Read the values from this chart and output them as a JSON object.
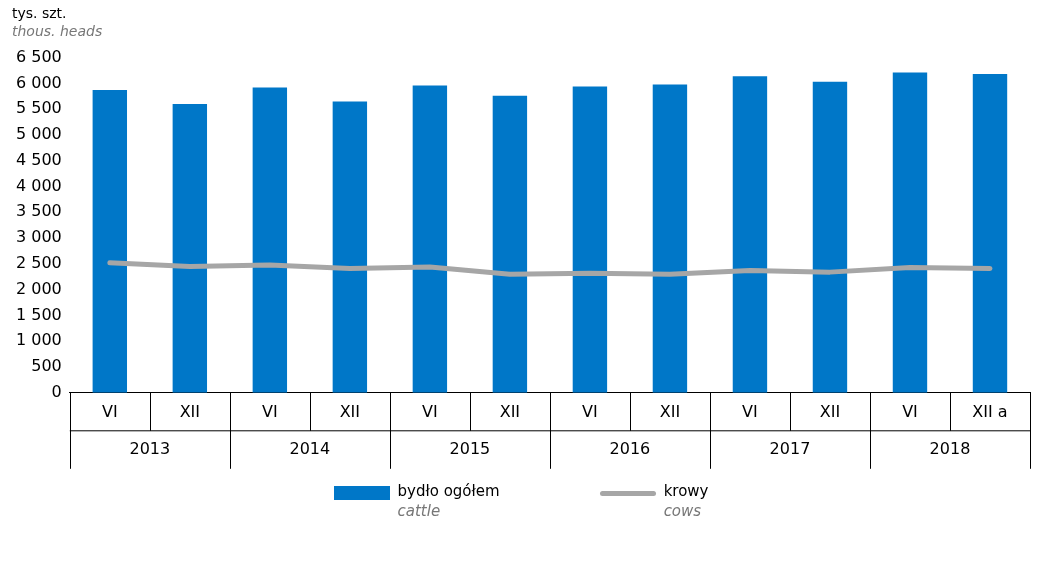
{
  "chart_data": {
    "type": "bar",
    "ylabel": "tys. szt.\nthous. heads",
    "categories": [
      "VI",
      "XII",
      "VI",
      "XII",
      "VI",
      "XII",
      "VI",
      "XII",
      "VI",
      "XII",
      "VI",
      "XII a"
    ],
    "annotations": [
      "2013",
      "2014",
      "2015",
      "2016",
      "2017",
      "2018"
    ],
    "series": [
      {
        "name": "bydło ogółem\ncattle",
        "color": "#0077c8",
        "values": [
          5870,
          5600,
          5920,
          5650,
          5960,
          5760,
          5940,
          5980,
          6140,
          6030,
          6210,
          6180
        ]
      },
      {
        "name": "krowy\ncows",
        "type": "line",
        "color": "#a6a6a6",
        "values": [
          2520,
          2450,
          2480,
          2410,
          2440,
          2300,
          2320,
          2300,
          2370,
          2340,
          2430,
          2410
        ]
      }
    ],
    "ylim": [
      0,
      6500
    ],
    "yticks": [
      0,
      500,
      {
        "value": 1000,
        "label": "1 000"
      },
      {
        "value": 1500,
        "label": "1 500"
      },
      {
        "value": 2000,
        "label": "2 000"
      },
      {
        "value": 2500,
        "label": "2 500"
      },
      {
        "value": 3000,
        "label": "3 000"
      },
      {
        "value": 3500,
        "label": "3 500"
      },
      {
        "value": 4000,
        "label": "4 000"
      },
      {
        "value": 4500,
        "label": "4 500"
      },
      {
        "value": 5000,
        "label": "5 000"
      },
      {
        "value": 5500,
        "label": "5 500"
      },
      {
        "value": 6000,
        "label": "6 000"
      },
      {
        "value": 6500,
        "label": "6 500"
      }
    ],
    "grid": false,
    "legend": "bottom",
    "marker": "none",
    "line_style": "solid"
  }
}
